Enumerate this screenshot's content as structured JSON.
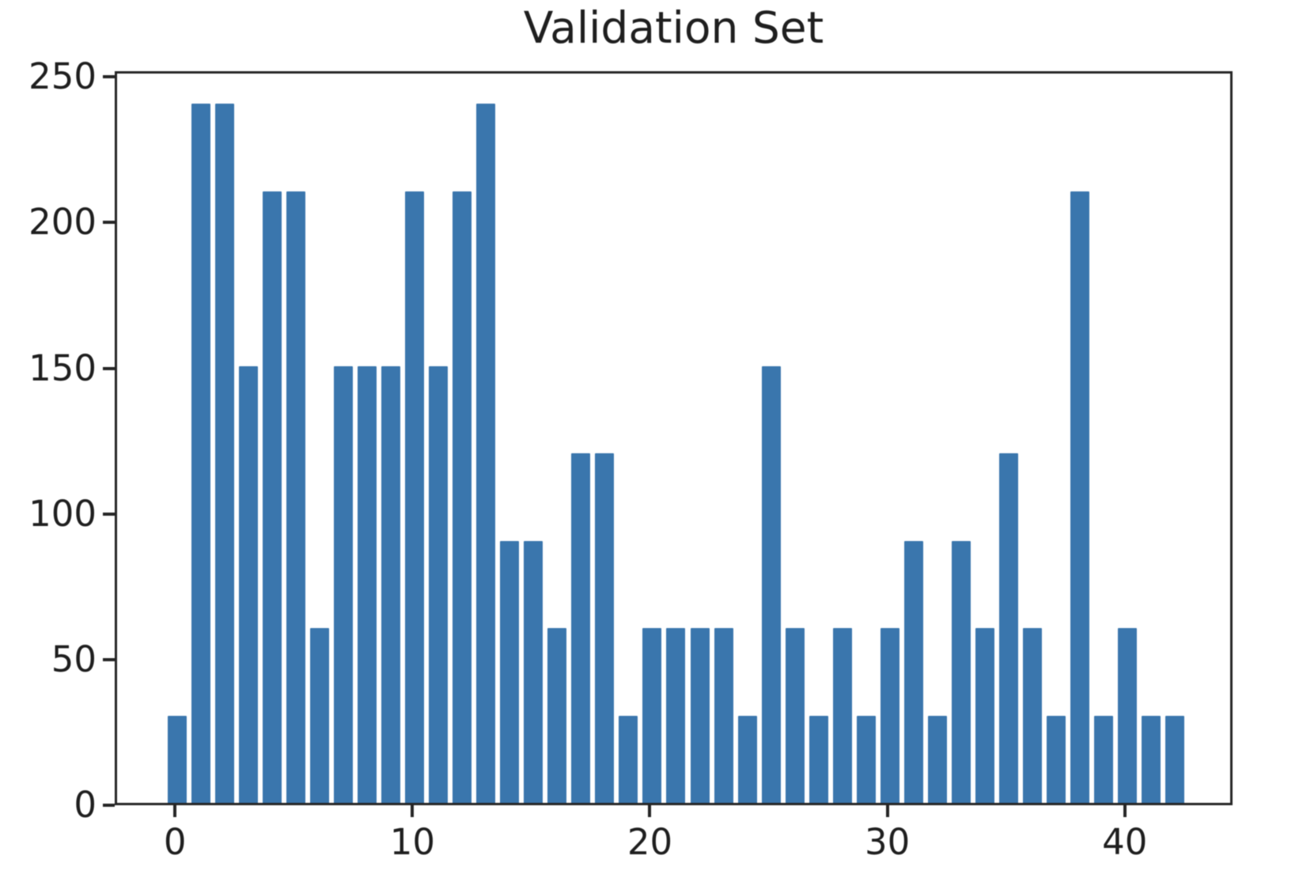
{
  "figure": {
    "title": "Validation Set"
  },
  "chart_data": {
    "type": "bar",
    "title": "Validation Set",
    "xlabel": "",
    "ylabel": "",
    "categories": [
      0,
      1,
      2,
      3,
      4,
      5,
      6,
      7,
      8,
      9,
      10,
      11,
      12,
      13,
      14,
      15,
      16,
      17,
      18,
      19,
      20,
      21,
      22,
      23,
      24,
      25,
      26,
      27,
      28,
      29,
      30,
      31,
      32,
      33,
      34,
      35,
      36,
      37,
      38,
      39,
      40,
      41,
      42
    ],
    "values": [
      30,
      240,
      240,
      150,
      210,
      210,
      60,
      150,
      150,
      150,
      210,
      150,
      210,
      240,
      90,
      90,
      60,
      120,
      120,
      30,
      60,
      60,
      60,
      60,
      30,
      150,
      60,
      30,
      60,
      30,
      60,
      90,
      30,
      90,
      60,
      120,
      60,
      30,
      210,
      30,
      60,
      30,
      30
    ],
    "xticks": [
      0,
      10,
      20,
      30,
      40
    ],
    "yticks": [
      0,
      50,
      100,
      150,
      200,
      250
    ],
    "xlim": [
      -2.54,
      44.54
    ],
    "ylim": [
      0,
      252
    ],
    "bar_width_units": 0.8,
    "grid": false,
    "legend": "none"
  },
  "colors": {
    "bar": "#3a76ad",
    "axis": "#262626",
    "text": "#1f1f1f",
    "background": "#ffffff"
  }
}
